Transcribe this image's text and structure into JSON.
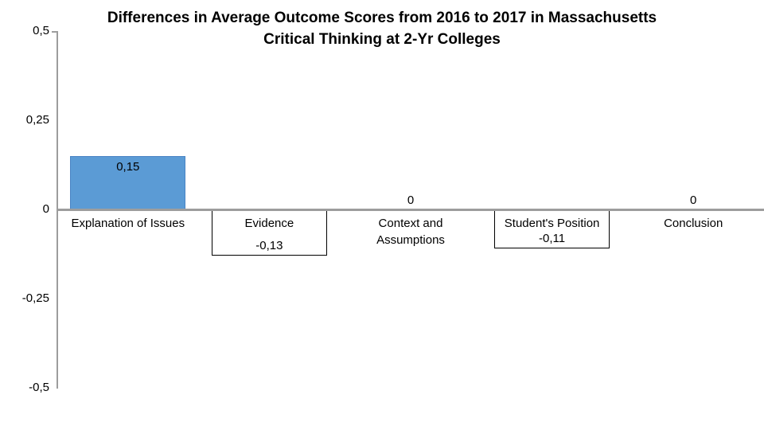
{
  "chart_data": {
    "type": "bar",
    "title_line1": "Differences in Average Outcome Scores from 2016 to 2017 in Massachusetts",
    "title_line2": "Critical Thinking at 2-Yr Colleges",
    "categories": [
      "Explanation of Issues",
      "Evidence",
      "Context and\nAssumptions",
      "Student's Position",
      "Conclusion"
    ],
    "values": [
      0.15,
      -0.13,
      0,
      -0.11,
      0
    ],
    "value_labels": [
      "0,15",
      "-0,13",
      "0",
      "-0,11",
      "0"
    ],
    "number_format": "decimal-comma",
    "xlabel": "",
    "ylabel": "",
    "y_axis": {
      "min": -0.5,
      "max": 0.5,
      "ticks": [
        {
          "label": "0,5",
          "value": 0.5
        },
        {
          "label": "0,25",
          "value": 0.25
        },
        {
          "label": "0",
          "value": 0
        },
        {
          "label": "-0,25",
          "value": -0.25
        },
        {
          "label": "-0,5",
          "value": -0.5
        }
      ]
    },
    "grid": false,
    "legend": null,
    "colors": {
      "bar_fill": "#5B9BD5",
      "bar_border": "#4A84C4",
      "negative_bar_fill": "#FFFFFF",
      "negative_bar_border": "#000000",
      "axis_line": "#9D9D9D",
      "text": "#000000",
      "background": "#FFFFFF"
    }
  }
}
